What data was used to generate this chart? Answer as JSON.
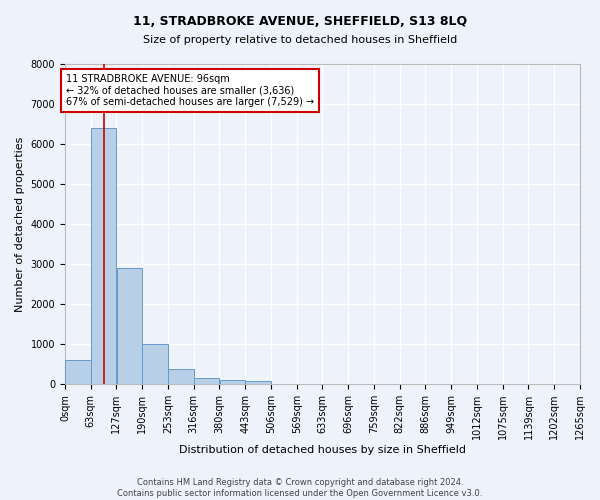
{
  "title": "11, STRADBROKE AVENUE, SHEFFIELD, S13 8LQ",
  "subtitle": "Size of property relative to detached houses in Sheffield",
  "xlabel": "Distribution of detached houses by size in Sheffield",
  "ylabel": "Number of detached properties",
  "footer_line1": "Contains HM Land Registry data © Crown copyright and database right 2024.",
  "footer_line2": "Contains public sector information licensed under the Open Government Licence v3.0.",
  "bin_labels": [
    "0sqm",
    "63sqm",
    "127sqm",
    "190sqm",
    "253sqm",
    "316sqm",
    "380sqm",
    "443sqm",
    "506sqm",
    "569sqm",
    "633sqm",
    "696sqm",
    "759sqm",
    "822sqm",
    "886sqm",
    "949sqm",
    "1012sqm",
    "1075sqm",
    "1139sqm",
    "1202sqm",
    "1265sqm"
  ],
  "bar_heights": [
    600,
    6400,
    2900,
    1000,
    380,
    150,
    100,
    80,
    0,
    0,
    0,
    0,
    0,
    0,
    0,
    0,
    0,
    0,
    0,
    0
  ],
  "bin_width": 63,
  "property_size": 96,
  "property_label": "11 STRADBROKE AVENUE: 96sqm",
  "annotation_line1": "← 32% of detached houses are smaller (3,636)",
  "annotation_line2": "67% of semi-detached houses are larger (7,529) →",
  "bar_color": "#b8cfe8",
  "bar_edge_color": "#6699cc",
  "vline_color": "#cc0000",
  "annotation_box_color": "#cc0000",
  "bg_color": "#eef2fa",
  "grid_color": "#ffffff",
  "ylim": [
    0,
    8000
  ],
  "yticks": [
    0,
    1000,
    2000,
    3000,
    4000,
    5000,
    6000,
    7000,
    8000
  ],
  "title_fontsize": 9,
  "subtitle_fontsize": 8,
  "xlabel_fontsize": 8,
  "ylabel_fontsize": 8,
  "tick_fontsize": 7,
  "annotation_fontsize": 7,
  "footer_fontsize": 6
}
